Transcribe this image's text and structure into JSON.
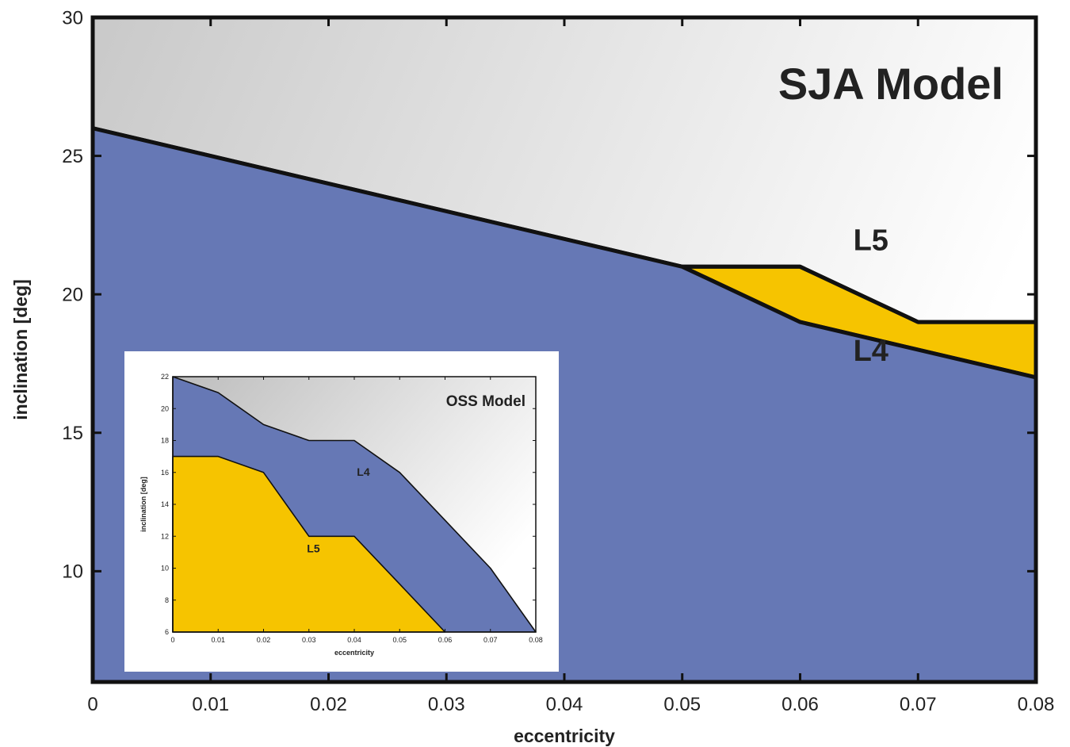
{
  "chart_data": [
    {
      "type": "area",
      "title": "SJA Model",
      "xlabel": "eccentricity",
      "ylabel": "inclination [deg]",
      "xlim": [
        0,
        0.08
      ],
      "ylim": [
        6,
        30
      ],
      "x_ticks": [
        0,
        0.01,
        0.02,
        0.03,
        0.04,
        0.05,
        0.06,
        0.07,
        0.08
      ],
      "x_tick_labels": [
        "0",
        "0.01",
        "0.02",
        "0.03",
        "0.04",
        "0.05",
        "0.06",
        "0.07",
        "0.08"
      ],
      "y_ticks": [
        10,
        15,
        20,
        25,
        30
      ],
      "y_tick_labels": [
        "10",
        "15",
        "20",
        "25",
        "30"
      ],
      "series": [
        {
          "name": "L4",
          "color": "#6678b5",
          "x": [
            0,
            0.05,
            0.06,
            0.08
          ],
          "y": [
            26,
            21,
            19,
            17
          ]
        },
        {
          "name": "L5",
          "color": "#f6c400",
          "x": [
            0,
            0.05,
            0.06,
            0.07,
            0.08
          ],
          "y": [
            26,
            21,
            21,
            19,
            19
          ]
        }
      ],
      "region_labels": [
        {
          "text": "L5",
          "x": 0.066,
          "y": 21.6
        },
        {
          "text": "L4",
          "x": 0.066,
          "y": 17.6
        }
      ],
      "background": "gray-gradient",
      "grid": false
    },
    {
      "type": "area",
      "title": "OSS Model",
      "xlabel": "eccentricity",
      "ylabel": "inclination [deg]",
      "xlim": [
        0,
        0.08
      ],
      "ylim": [
        6,
        22
      ],
      "x_ticks": [
        0,
        0.01,
        0.02,
        0.03,
        0.04,
        0.05,
        0.06,
        0.07,
        0.08
      ],
      "x_tick_labels": [
        "0",
        "0.01",
        "0.02",
        "0.03",
        "0.04",
        "0.05",
        "0.06",
        "0.07",
        "0.08"
      ],
      "y_ticks": [
        6,
        8,
        10,
        12,
        14,
        16,
        18,
        20,
        22
      ],
      "y_tick_labels": [
        "6",
        "8",
        "10",
        "12",
        "14",
        "16",
        "18",
        "20",
        "22"
      ],
      "series": [
        {
          "name": "L4",
          "color": "#6678b5",
          "x": [
            0,
            0.01,
            0.02,
            0.03,
            0.04,
            0.05,
            0.06,
            0.07,
            0.08
          ],
          "y": [
            22,
            21,
            19,
            18,
            18,
            16,
            13,
            10,
            6
          ]
        },
        {
          "name": "L5",
          "color": "#f6c400",
          "x": [
            0,
            0.01,
            0.02,
            0.03,
            0.04,
            0.05,
            0.06
          ],
          "y": [
            17,
            17,
            16,
            12,
            12,
            9,
            6
          ]
        }
      ],
      "region_labels": [
        {
          "text": "L4",
          "x": 0.042,
          "y": 15.8
        },
        {
          "text": "L5",
          "x": 0.031,
          "y": 11.0
        }
      ],
      "background": "gray-gradient",
      "grid": false
    }
  ]
}
